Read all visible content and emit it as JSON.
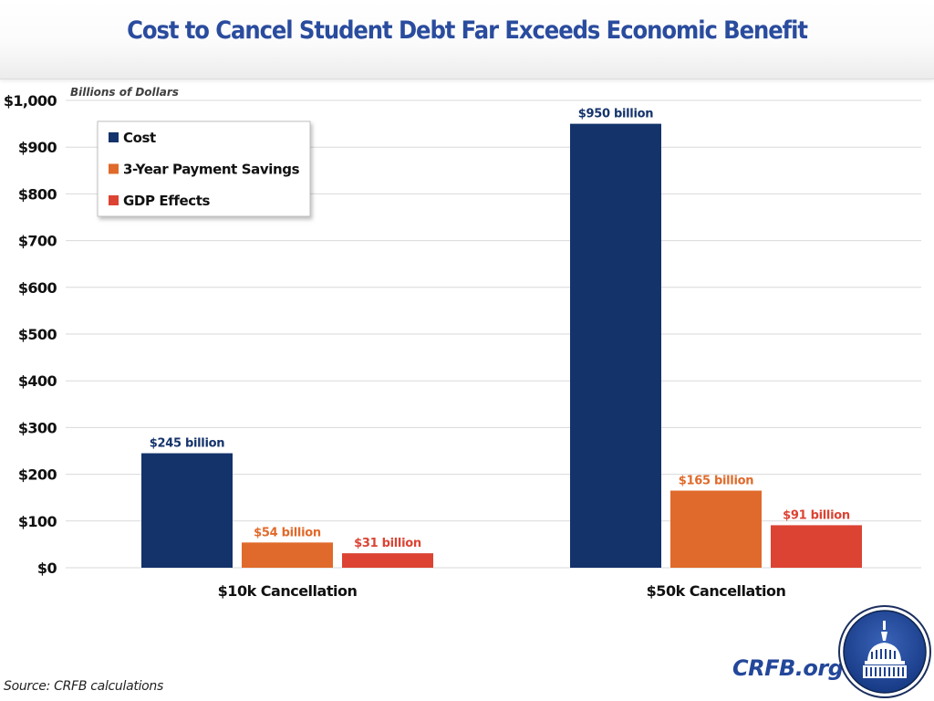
{
  "header": {
    "title": "Cost to Cancel Student Debt Far Exceeds Economic Benefit"
  },
  "footer": {
    "source": "Source: CRFB calculations",
    "brand": "CRFB.org",
    "seal_icon": "capitol-dome-seal-icon"
  },
  "colors": {
    "title": "#2a4c9e",
    "cost": "#14336b",
    "payment_savings": "#e06a2b",
    "gdp_effects": "#dc4333",
    "grid": "#d9d9d9"
  },
  "chart_data": {
    "type": "bar",
    "title": "Cost to Cancel Student Debt Far Exceeds Economic Benefit",
    "ylabel": "Billions of Dollars",
    "xlabel": "",
    "ylim": [
      0,
      1000
    ],
    "yticks": [
      0,
      100,
      200,
      300,
      400,
      500,
      600,
      700,
      800,
      900,
      1000
    ],
    "ytick_labels": [
      "$0",
      "$100",
      "$200",
      "$300",
      "$400",
      "$500",
      "$600",
      "$700",
      "$800",
      "$900",
      "$1,000"
    ],
    "grid": true,
    "legend_position": "top-left",
    "categories": [
      "$10k Cancellation",
      "$50k Cancellation"
    ],
    "series": [
      {
        "name": "Cost",
        "color": "#14336b",
        "values": [
          245,
          950
        ],
        "labels": [
          "$245 billion",
          "$950 billion"
        ]
      },
      {
        "name": "3-Year Payment Savings",
        "color": "#e06a2b",
        "values": [
          54,
          165
        ],
        "labels": [
          "$54 billion",
          "$165 billion"
        ]
      },
      {
        "name": "GDP Effects",
        "color": "#dc4333",
        "values": [
          31,
          91
        ],
        "labels": [
          "$31 billion",
          "$91 billion"
        ]
      }
    ]
  }
}
